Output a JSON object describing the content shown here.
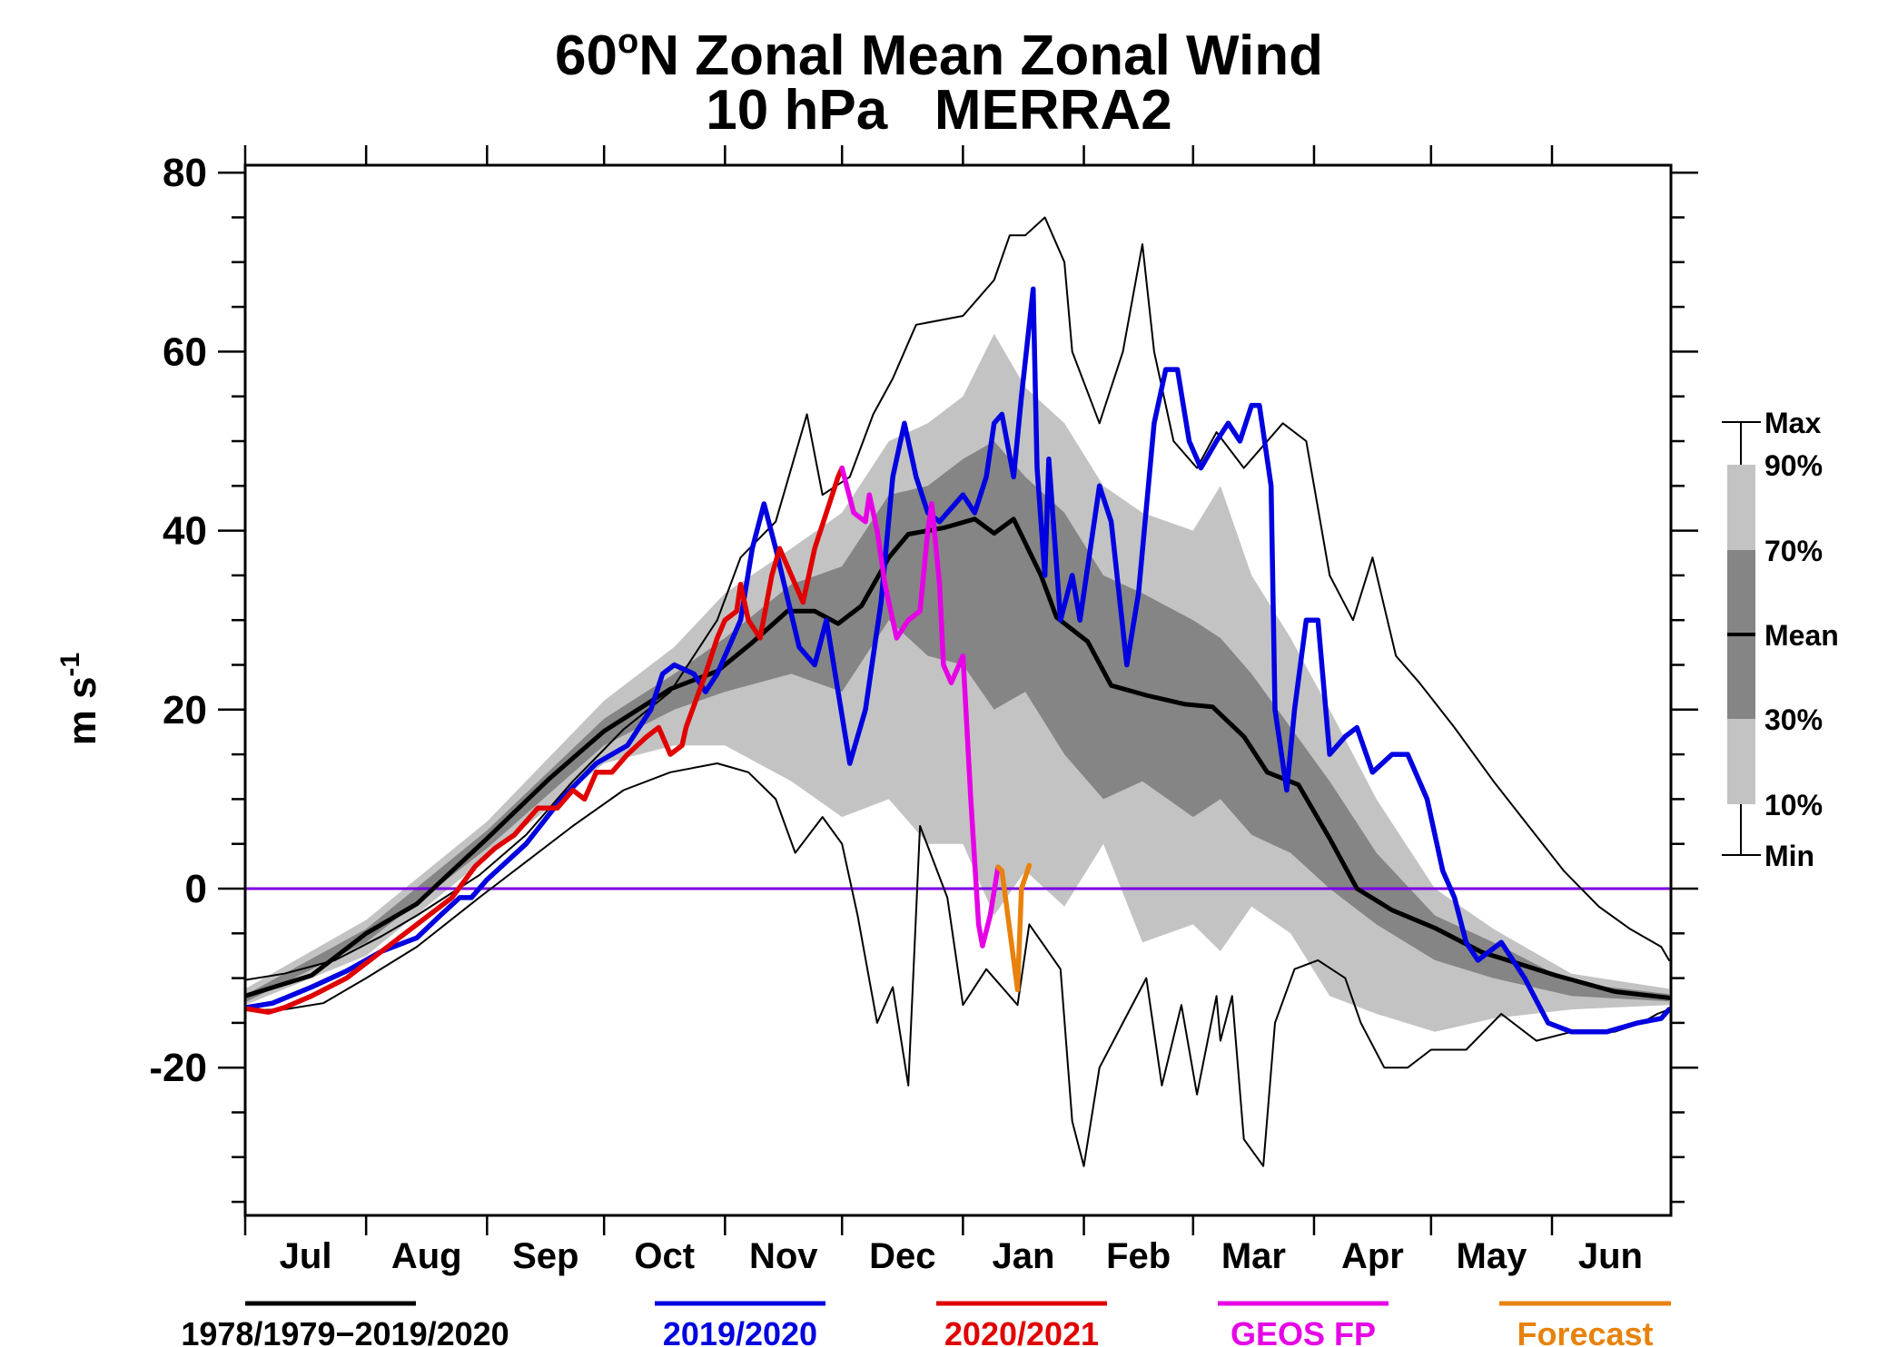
{
  "chart_data": {
    "type": "line",
    "title_line1_pre": "60",
    "title_line1_sup": "o",
    "title_line1_post": "N Zonal Mean Zonal Wind",
    "title_line2": "10 hPa   MERRA2",
    "xlabel": "",
    "ylabel": "m s",
    "ylabel_sup": "-1",
    "x_unit": "days since Jul 1",
    "xlim": [
      0,
      365
    ],
    "ylim": [
      -36.5,
      80.8
    ],
    "y_major_ticks": [
      80,
      60,
      40,
      20,
      0,
      -20
    ],
    "y_tick_labels": [
      "80",
      "60",
      "40",
      "20",
      "0",
      "-20"
    ],
    "y_minor_step": 5,
    "month_ticks": [
      0,
      31,
      62,
      92,
      123,
      153,
      184,
      215,
      243,
      274,
      304,
      335
    ],
    "month_labels": [
      "Jul",
      "Aug",
      "Sep",
      "Oct",
      "Nov",
      "Dec",
      "Jan",
      "Feb",
      "Mar",
      "Apr",
      "May",
      "Jun"
    ],
    "zero_line": {
      "value": 0,
      "color": "#7b00e6"
    },
    "grid": false,
    "bands": {
      "x": [
        0,
        31,
        62,
        92,
        110,
        123,
        140,
        153,
        165,
        175,
        184,
        192,
        200,
        210,
        220,
        230,
        243,
        250,
        258,
        268,
        278,
        290,
        305,
        320,
        340,
        365
      ],
      "p10": [
        -13,
        -7.5,
        3.5,
        14,
        16,
        16,
        12,
        8,
        10,
        5,
        5,
        -3,
        2,
        -2,
        5,
        -6,
        -4,
        -7,
        -2,
        -5,
        -12,
        -14,
        -16,
        -14.5,
        -13.5,
        -13
      ],
      "p30": [
        -12.7,
        -6,
        4.5,
        16,
        20,
        22,
        24,
        22,
        30,
        26,
        25,
        20,
        22,
        15,
        10,
        12,
        8,
        10,
        6,
        4,
        0,
        -4,
        -8,
        -10,
        -12,
        -12.6
      ],
      "p70": [
        -11.9,
        -4.5,
        6.5,
        19,
        24,
        28,
        34,
        36,
        44,
        45,
        48,
        50,
        46,
        42,
        35,
        33,
        30,
        28,
        24,
        18,
        12,
        4,
        -3,
        -6,
        -10.5,
        -11.8
      ],
      "p90": [
        -11.2,
        -3.5,
        7.5,
        21,
        27,
        33,
        38,
        42,
        50,
        52,
        55,
        62,
        56,
        52,
        45,
        42,
        40,
        45,
        35,
        28,
        20,
        10,
        0,
        -4.5,
        -9.5,
        -11.2
      ],
      "colors": {
        "outer": "#c3c3c3",
        "inner": "#858585"
      }
    },
    "series": [
      {
        "name": "1978/1979-2019/2020 Max",
        "color": "#000000",
        "role": "max",
        "x": [
          0,
          10,
          23,
          35,
          44,
          60,
          72,
          84,
          97,
          109,
          121,
          127,
          136,
          144,
          148,
          155,
          161,
          166,
          172,
          184,
          188,
          192,
          196,
          200,
          205,
          210,
          212,
          219,
          225,
          230,
          233,
          238,
          244,
          249,
          256,
          266,
          272,
          278,
          284,
          289,
          295,
          301,
          310,
          320,
          329,
          338,
          347,
          355,
          363,
          365
        ],
        "values": [
          -10.2,
          -9.5,
          -8,
          -5.3,
          -3,
          1.5,
          6,
          12,
          17.8,
          22,
          30,
          37,
          41,
          53,
          44,
          46,
          53,
          57,
          63,
          64,
          66,
          68,
          73,
          73,
          75,
          70,
          60,
          52,
          60,
          72,
          60,
          50,
          47,
          51,
          47,
          52,
          50,
          35,
          30,
          37,
          26,
          23,
          18,
          12,
          7,
          2,
          -2,
          -4.5,
          -6.5,
          -8
        ]
      },
      {
        "name": "1978/1979-2019/2020 Min",
        "color": "#000000",
        "role": "min",
        "x": [
          0,
          10,
          20,
          31,
          44,
          60,
          72,
          84,
          97,
          109,
          121,
          129,
          136,
          141,
          148,
          153,
          157,
          162,
          166,
          170,
          173,
          180,
          184,
          190,
          198,
          201,
          209,
          212,
          215,
          219,
          225,
          231,
          235,
          240,
          244,
          249,
          250,
          253,
          256,
          261,
          264,
          269,
          275,
          282,
          286,
          292,
          298,
          304,
          313,
          322,
          331,
          340,
          351,
          358,
          362,
          365
        ],
        "values": [
          -13.6,
          -13.5,
          -12.8,
          -10,
          -6.5,
          -1,
          3,
          7,
          11,
          13,
          14,
          13,
          10,
          4,
          8,
          5,
          -3,
          -15,
          -11,
          -22,
          7,
          -1,
          -13,
          -9,
          -13,
          -4,
          -9,
          -26,
          -31,
          -20,
          -15,
          -10,
          -22,
          -13,
          -23,
          -12,
          -17,
          -12,
          -28,
          -31,
          -15,
          -9,
          -8,
          -10,
          -15,
          -20,
          -20,
          -18,
          -18,
          -14,
          -17,
          -16,
          -16,
          -15,
          -14,
          -13.5
        ]
      },
      {
        "name": "1978/1979-2019/2020 Mean",
        "color": "#000000",
        "role": "mean",
        "x": [
          0,
          17,
          31,
          44,
          62,
          78,
          92,
          109,
          121,
          130,
          139,
          146,
          152,
          158,
          165,
          170,
          179,
          187,
          192,
          197,
          204,
          208,
          216,
          222,
          231,
          241,
          248,
          256,
          262,
          270,
          278,
          285,
          294,
          305,
          317,
          336,
          351,
          365
        ],
        "values": [
          -12,
          -9.7,
          -5,
          -1.7,
          5.6,
          12.3,
          17.6,
          22.3,
          24.3,
          27.5,
          31,
          31,
          29.6,
          31.6,
          37,
          39.6,
          40.3,
          41.3,
          39.7,
          41.3,
          35,
          30.3,
          27.6,
          22.7,
          21.6,
          20.6,
          20.3,
          17,
          13,
          11.6,
          5.6,
          0,
          -2.4,
          -4.4,
          -7.1,
          -9.7,
          -11.5,
          -12.2
        ]
      },
      {
        "name": "2019/2020",
        "color": "#0000e0",
        "x": [
          0,
          7,
          17,
          26,
          35,
          44,
          50,
          55,
          58,
          62,
          72,
          81,
          90,
          98,
          104,
          107,
          110,
          115,
          118,
          121,
          127,
          130,
          133,
          136,
          142,
          146,
          149,
          152,
          155,
          159,
          163,
          166,
          169,
          172,
          175,
          178,
          184,
          187,
          190,
          192,
          194,
          197,
          199,
          202,
          203,
          205,
          206,
          209,
          212,
          214,
          219,
          222,
          226,
          229,
          233,
          236,
          239,
          242,
          245,
          249,
          252,
          255,
          258,
          260,
          263,
          264,
          267,
          269,
          272,
          275,
          278,
          282,
          285,
          289,
          294,
          298,
          303,
          307,
          310,
          313,
          316,
          322,
          328,
          334,
          340,
          349,
          357,
          363,
          365
        ],
        "values": [
          -13.3,
          -12.8,
          -11,
          -9.2,
          -7,
          -5.5,
          -3,
          -1,
          -1,
          1,
          5,
          10,
          14,
          16,
          20,
          24,
          25,
          24,
          22,
          24,
          30,
          38,
          43,
          38,
          27,
          25,
          30,
          22,
          14,
          20,
          32,
          46,
          52,
          46,
          42,
          41,
          44,
          42,
          46,
          52,
          53,
          46,
          55,
          67,
          47,
          35,
          48,
          30,
          35,
          30,
          45,
          41,
          25,
          33,
          52,
          58,
          58,
          50,
          47,
          50,
          52,
          50,
          54,
          54,
          45,
          20,
          11,
          20,
          30,
          30,
          15,
          17,
          18,
          13,
          15,
          15,
          10,
          2,
          -1,
          -6,
          -8,
          -6,
          -10,
          -15,
          -16,
          -16,
          -15,
          -14.5,
          -13.5
        ]
      },
      {
        "name": "2020/2021",
        "color": "#e00000",
        "x": [
          0,
          6,
          10,
          17,
          26,
          35,
          44,
          53,
          59,
          64,
          69,
          75,
          80,
          84,
          87,
          90,
          94,
          98,
          103,
          106,
          109,
          112,
          113,
          118,
          121,
          123,
          126,
          127,
          129,
          132,
          135,
          137,
          140,
          143,
          146,
          149,
          152,
          153
        ],
        "values": [
          -13.4,
          -13.8,
          -13.3,
          -12,
          -10,
          -7,
          -4,
          -1,
          2.5,
          4.5,
          6,
          9,
          9,
          11,
          10,
          13,
          13,
          15,
          17,
          18,
          15,
          16,
          18,
          24,
          28,
          30,
          31,
          34,
          30,
          28,
          35,
          38,
          35,
          32,
          38,
          42,
          46,
          47
        ]
      },
      {
        "name": "GEOS FP",
        "color": "#e600e6",
        "x": [
          153,
          156,
          159,
          160,
          162,
          164,
          167,
          170,
          173,
          175,
          176,
          178,
          179,
          181,
          184,
          186,
          188,
          189,
          191,
          193
        ],
        "values": [
          47,
          42,
          41,
          44,
          40,
          34,
          28,
          30,
          31,
          40,
          43,
          34,
          25,
          23,
          26,
          10,
          -4,
          -6.4,
          -3,
          2.4
        ]
      },
      {
        "name": "Forecast",
        "color": "#e8820c",
        "x": [
          193,
          194,
          198,
          199,
          201
        ],
        "values": [
          2.4,
          2,
          -11.3,
          0,
          2.6
        ]
      }
    ],
    "legend": {
      "placement": "bottom",
      "entries": [
        {
          "label": "1978/1979−2019/2020",
          "color": "#000000"
        },
        {
          "label": "2019/2020",
          "color": "#0000e0"
        },
        {
          "label": "2020/2021",
          "color": "#e00000"
        },
        {
          "label": "GEOS FP",
          "color": "#e600e6"
        },
        {
          "label": "Forecast",
          "color": "#e8820c"
        }
      ]
    },
    "key": {
      "placement": "right",
      "labels": [
        "Max",
        "90%",
        "70%",
        "Mean",
        "30%",
        "10%",
        "Min"
      ]
    }
  }
}
